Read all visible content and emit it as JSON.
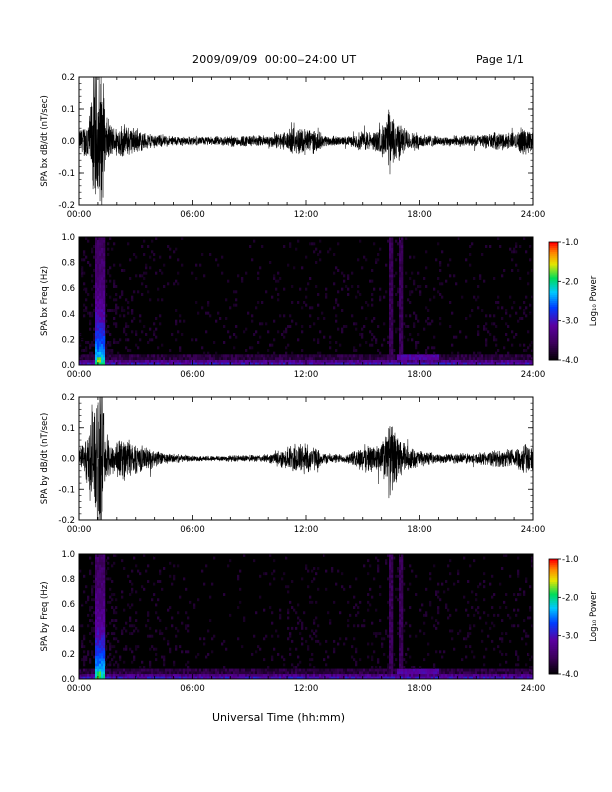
{
  "header": {
    "title": "2009/09/09  00:00‒24:00 UT",
    "page": "Page 1/1"
  },
  "footer": {
    "xlabel": "Universal Time (hh:mm)"
  },
  "chart_data": [
    {
      "type": "line",
      "ylabel": "SPA bx dB/dt (nT/sec)",
      "xlim": [
        0,
        24
      ],
      "ylim": [
        -0.2,
        0.2
      ],
      "xticks": [
        "00:00",
        "06:00",
        "12:00",
        "18:00",
        "24:00"
      ],
      "yticks": [
        "-0.2",
        "-0.1",
        "0.0",
        "0.1",
        "0.2"
      ],
      "envelope": {
        "hours": [
          0,
          0.3,
          0.6,
          0.8,
          1.0,
          1.2,
          1.4,
          1.8,
          2.2,
          2.8,
          3.5,
          4.5,
          6,
          7,
          8,
          9,
          10,
          11,
          11.5,
          12,
          12.5,
          13,
          14,
          14.5,
          15,
          15.5,
          16,
          16.2,
          16.4,
          16.6,
          16.8,
          17,
          17.5,
          18,
          19,
          20,
          21,
          22,
          23,
          23.5,
          24
        ],
        "amplitude": [
          0.04,
          0.06,
          0.12,
          0.25,
          0.25,
          0.25,
          0.09,
          0.05,
          0.06,
          0.05,
          0.03,
          0.02,
          0.015,
          0.015,
          0.02,
          0.02,
          0.02,
          0.035,
          0.05,
          0.05,
          0.04,
          0.02,
          0.015,
          0.02,
          0.04,
          0.03,
          0.05,
          0.07,
          0.12,
          0.09,
          0.08,
          0.06,
          0.03,
          0.03,
          0.015,
          0.02,
          0.02,
          0.03,
          0.03,
          0.05,
          0.04
        ]
      }
    },
    {
      "type": "heatmap",
      "ylabel": "SPA bx Freq (Hz)",
      "xlim": [
        0,
        24
      ],
      "ylim": [
        0,
        1
      ],
      "xticks": [
        "00:00",
        "06:00",
        "12:00",
        "18:00",
        "24:00"
      ],
      "yticks": [
        "0.0",
        "0.2",
        "0.4",
        "0.6",
        "0.8",
        "1.0"
      ],
      "colorbar": {
        "label": "Log₁₀ Power",
        "range": [
          -4,
          -1
        ],
        "ticks": [
          "-1.0",
          "-2.0",
          "-3.0",
          "-4.0"
        ]
      },
      "features": {
        "burst_hours": [
          0.8,
          1.4
        ],
        "vertical_lines_hours": [
          16.5,
          17.0
        ],
        "low_freq_band_hours": [
          16.8,
          19.0
        ],
        "background_log_power": -4.0
      }
    },
    {
      "type": "line",
      "ylabel": "SPA by dB/dt (nT/sec)",
      "xlim": [
        0,
        24
      ],
      "ylim": [
        -0.2,
        0.2
      ],
      "xticks": [
        "00:00",
        "06:00",
        "12:00",
        "18:00",
        "24:00"
      ],
      "yticks": [
        "-0.2",
        "-0.1",
        "0.0",
        "0.1",
        "0.2"
      ],
      "envelope": {
        "hours": [
          0,
          0.3,
          0.6,
          0.8,
          1.0,
          1.2,
          1.4,
          1.8,
          2.2,
          2.8,
          3.2,
          4.5,
          6,
          7,
          8,
          9,
          10,
          11,
          11.5,
          12,
          12.5,
          13,
          14,
          14.5,
          15,
          15.5,
          16,
          16.2,
          16.4,
          16.6,
          16.8,
          17,
          17.5,
          18,
          19,
          20,
          21,
          22,
          23,
          23.5,
          24
        ],
        "amplitude": [
          0.03,
          0.06,
          0.15,
          0.25,
          0.25,
          0.25,
          0.09,
          0.06,
          0.08,
          0.07,
          0.05,
          0.02,
          0.01,
          0.01,
          0.012,
          0.012,
          0.015,
          0.04,
          0.06,
          0.06,
          0.04,
          0.02,
          0.015,
          0.025,
          0.05,
          0.05,
          0.06,
          0.09,
          0.14,
          0.12,
          0.09,
          0.07,
          0.04,
          0.03,
          0.015,
          0.02,
          0.02,
          0.03,
          0.035,
          0.06,
          0.04
        ]
      }
    },
    {
      "type": "heatmap",
      "ylabel": "SPA by Freq (Hz)",
      "xlim": [
        0,
        24
      ],
      "ylim": [
        0,
        1
      ],
      "xticks": [
        "00:00",
        "06:00",
        "12:00",
        "18:00",
        "24:00"
      ],
      "yticks": [
        "0.0",
        "0.2",
        "0.4",
        "0.6",
        "0.8",
        "1.0"
      ],
      "colorbar": {
        "label": "Log₁₀ Power",
        "range": [
          -4,
          -1
        ],
        "ticks": [
          "-1.0",
          "-2.0",
          "-3.0",
          "-4.0"
        ]
      },
      "features": {
        "burst_hours": [
          0.8,
          1.4
        ],
        "vertical_lines_hours": [
          16.5,
          17.0
        ],
        "low_freq_band_hours": [
          16.8,
          19.0
        ],
        "background_log_power": -4.0
      }
    }
  ]
}
